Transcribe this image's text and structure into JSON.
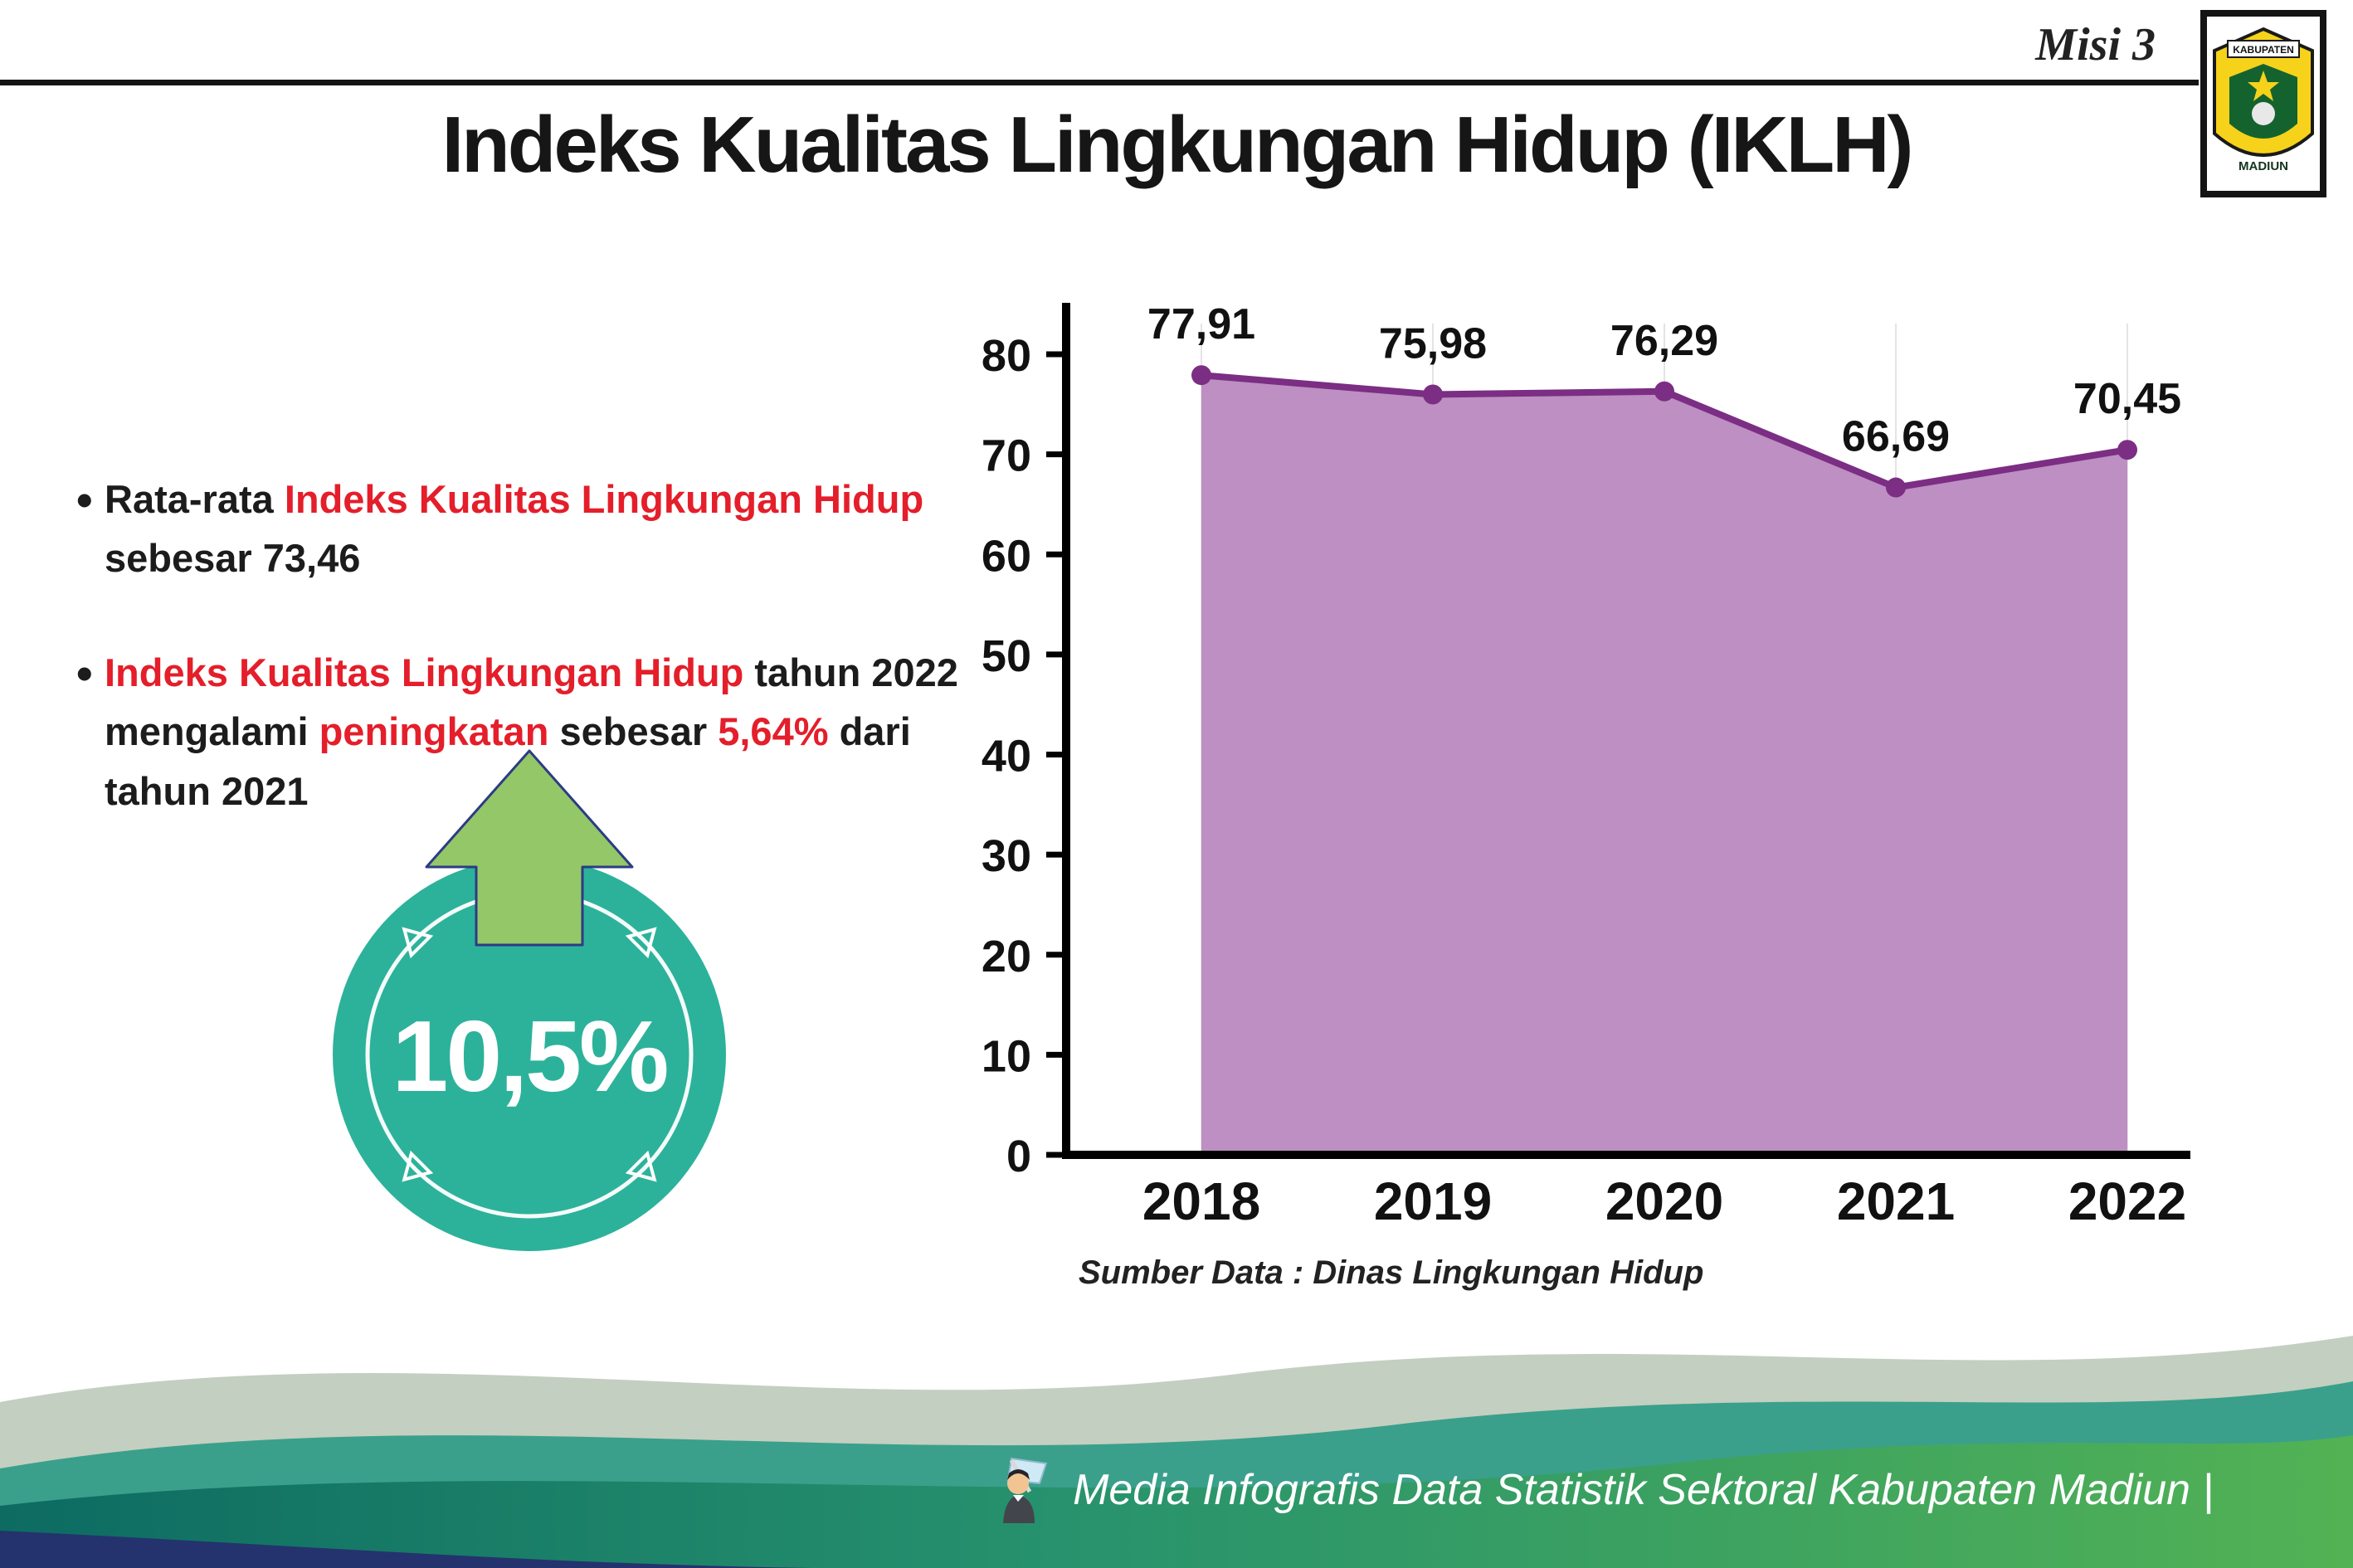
{
  "header": {
    "misi_label": "Misi 3",
    "title": "Indeks Kualitas Lingkungan Hidup (IKLH)",
    "logo_top": "KABUPATEN",
    "logo_bottom": "MADIUN"
  },
  "bullets": {
    "bullet_glyph": "•",
    "b1_pre": "Rata-rata ",
    "b1_red": "Indeks Kualitas Lingkungan Hidup",
    "b1_post": " sebesar 73,46",
    "b2_red1": "Indeks Kualitas Lingkungan Hidup",
    "b2_mid1": " tahun 2022 mengalami ",
    "b2_red2": "peningkatan",
    "b2_mid2": " sebesar ",
    "b2_red3": "5,64%",
    "b2_post": " dari tahun 2021"
  },
  "badge": {
    "value": "10,5%"
  },
  "chart_data": {
    "type": "area",
    "title": "",
    "categories": [
      "2018",
      "2019",
      "2020",
      "2021",
      "2022"
    ],
    "values": [
      77.91,
      75.98,
      76.29,
      66.69,
      70.45
    ],
    "value_labels": [
      "77,91",
      "75,98",
      "76,29",
      "66,69",
      "70,45"
    ],
    "ylim": [
      0,
      80
    ],
    "yticks": [
      0,
      10,
      20,
      30,
      40,
      50,
      60,
      70,
      80
    ],
    "grid": "faint-vertical",
    "legend": "none",
    "area_fill": "#bd8fc2",
    "line_color": "#7b2e83",
    "source": "Sumber Data : Dinas Lingkungan Hidup"
  },
  "footer": {
    "credit": "Media Infografis Data Statistik Sektoral Kabupaten Madiun |"
  },
  "colors": {
    "red": "#e41e2a",
    "teal": "#2cb29a",
    "arrow_green": "#93c767",
    "wave_pale": "#c3cfc0",
    "wave_teal": "#3aa08b",
    "wave_green_left": "#0d6b62",
    "wave_green_right": "#52b254",
    "wave_navy": "#24336e"
  }
}
